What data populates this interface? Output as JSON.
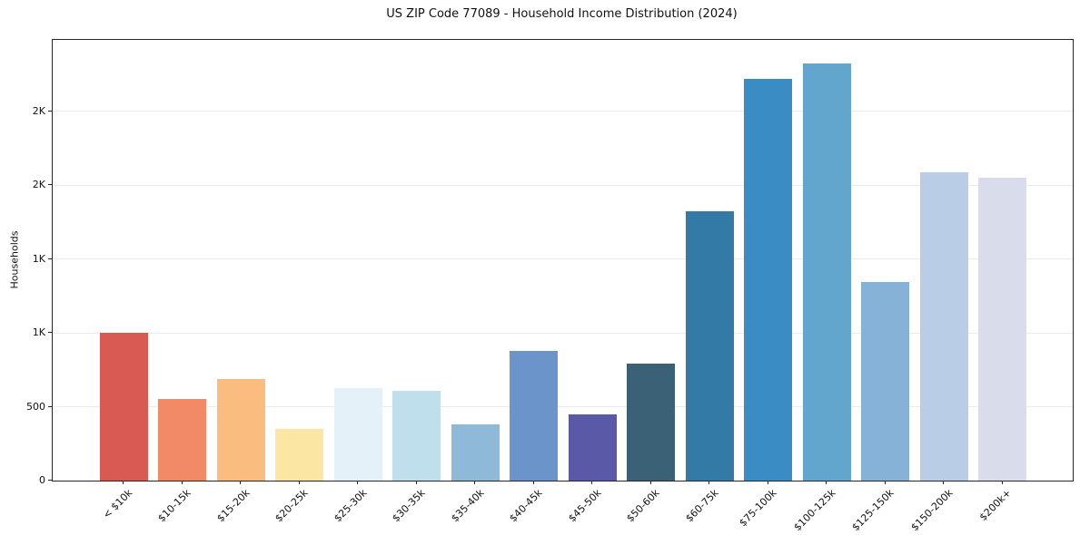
{
  "title": "US ZIP Code 77089 - Household Income Distribution (2024)",
  "chart_data": {
    "type": "bar",
    "title": "US ZIP Code 77089 - Household Income Distribution (2024)",
    "xlabel": "",
    "ylabel": "Households",
    "categories": [
      "< $10k",
      "$10-15k",
      "$15-20k",
      "$20-25k",
      "$25-30k",
      "$30-35k",
      "$35-40k",
      "$40-45k",
      "$45-50k",
      "$50-60k",
      "$60-75k",
      "$75-100k",
      "$100-125k",
      "$125-150k",
      "$150-200k",
      "$200k+"
    ],
    "values": [
      1000,
      550,
      690,
      350,
      625,
      610,
      380,
      875,
      450,
      790,
      1820,
      2720,
      2825,
      1345,
      2085,
      2050
    ],
    "bar_colors": [
      "#d85a52",
      "#f28a68",
      "#fbbc80",
      "#fbe7a3",
      "#e4f1f8",
      "#bfdfed",
      "#8eb9d9",
      "#6b94cb",
      "#5a59a7",
      "#3a6175",
      "#337aa6",
      "#398dc4",
      "#62a5cd",
      "#86b2d8",
      "#b9cde6",
      "#d9dcea"
    ],
    "ylim": [
      0,
      2982
    ],
    "yticks": {
      "values": [
        0,
        500,
        1000,
        1500,
        2000,
        2500
      ],
      "labels": [
        "0",
        "500",
        "1K",
        "1K",
        "2K",
        "2K"
      ]
    },
    "grid": "horizontal",
    "gridline_color": "#ebebeb",
    "spine_color": "#262626",
    "background_color": "#ffffff",
    "legend": "none",
    "x_tick_rotation_deg": 45
  }
}
